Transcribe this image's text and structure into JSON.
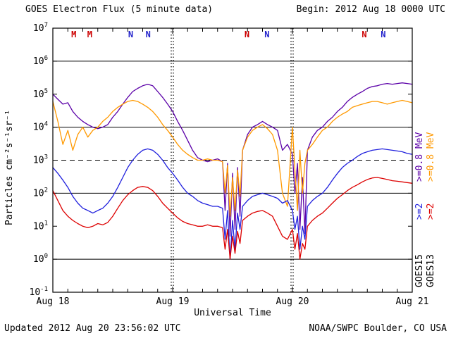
{
  "header": {
    "title": "GOES Electron Flux (5 minute data)",
    "begin": "Begin: 2012 Aug 18 0000 UTC"
  },
  "axes": {
    "ylabel": "Particles cm⁻²s⁻¹sr⁻¹",
    "xlabel": "Universal Time"
  },
  "legend": {
    "items": [
      {
        "label": ">=0.8 MeV",
        "color": "#5b00a8",
        "satellite": "GOES15"
      },
      {
        "label": ">=0.8 MeV",
        "color": "#ff9900",
        "satellite": "GOES13"
      },
      {
        "label": ">=2",
        "color": "#2020dd",
        "satellite": "GOES15"
      },
      {
        "label": ">=2",
        "color": "#dd0000",
        "satellite": "GOES13"
      },
      {
        "label": "GOES15",
        "color": "#000000"
      },
      {
        "label": "GOES13",
        "color": "#000000"
      }
    ]
  },
  "footer": {
    "updated": "Updated 2012 Aug 20 23:56:02 UTC",
    "source": "NOAA/SWPC Boulder, CO USA"
  },
  "chart_data": {
    "type": "line",
    "title": "GOES Electron Flux (5 minute data)",
    "begin": "2012 Aug 18 0000 UTC",
    "xlabel": "Universal Time",
    "ylabel": "Particles cm^-2 s^-1 sr^-1",
    "y_scale": "log10",
    "ylim": [
      0.1,
      10000000
    ],
    "y_tick_exponents": [
      7,
      6,
      5,
      4,
      3,
      2,
      1,
      0,
      -1
    ],
    "solid_grid_exponents": [
      6,
      4,
      2,
      0
    ],
    "threshold": {
      "value": 1000,
      "style": "dashed"
    },
    "x_ticks": [
      {
        "label": "Aug 18",
        "hour": 0
      },
      {
        "label": "Aug 19",
        "hour": 24
      },
      {
        "label": "Aug 20",
        "hour": 48
      },
      {
        "label": "Aug 21",
        "hour": 72
      }
    ],
    "day_boundary_hours": [
      24,
      48
    ],
    "minor_tick_hours_step": 3,
    "hours": [
      0,
      1,
      2,
      3,
      4,
      5,
      6,
      7,
      8,
      9,
      10,
      11,
      12,
      13,
      14,
      15,
      16,
      17,
      18,
      19,
      20,
      21,
      22,
      23,
      24,
      25,
      26,
      27,
      28,
      29,
      30,
      31,
      32,
      33,
      34,
      34.5,
      35,
      35.5,
      36,
      36.5,
      37,
      37.5,
      38,
      39,
      40,
      41,
      42,
      43,
      44,
      45,
      46,
      47,
      48,
      48.5,
      49,
      49.5,
      50,
      50.5,
      51,
      52,
      53,
      54,
      55,
      56,
      57,
      58,
      59,
      60,
      61,
      62,
      63,
      64,
      65,
      66,
      67,
      68,
      69,
      70,
      71,
      72
    ],
    "series": [
      {
        "name": "GOES15 >=0.8 MeV",
        "color": "#5b00a8",
        "values": [
          100000,
          70000,
          50000,
          55000,
          30000,
          20000,
          15000,
          12000,
          10000,
          9000,
          10000,
          12000,
          20000,
          30000,
          50000,
          80000,
          120000,
          150000,
          180000,
          200000,
          180000,
          120000,
          80000,
          50000,
          30000,
          15000,
          8000,
          4000,
          2000,
          1200,
          1000,
          900,
          1000,
          1100,
          900,
          30,
          800,
          5,
          400,
          8,
          600,
          20,
          2000,
          6000,
          10000,
          12000,
          15000,
          12000,
          10000,
          8000,
          2000,
          3000,
          1500,
          100,
          800,
          8,
          300,
          6,
          2000,
          5000,
          8000,
          10000,
          15000,
          20000,
          30000,
          40000,
          60000,
          80000,
          100000,
          120000,
          150000,
          170000,
          180000,
          200000,
          210000,
          200000,
          210000,
          220000,
          210000,
          200000
        ]
      },
      {
        "name": "GOES13 >=0.8 MeV",
        "color": "#ff9900",
        "values": [
          60000,
          15000,
          3000,
          8000,
          2000,
          6000,
          10000,
          5000,
          8000,
          10000,
          15000,
          20000,
          30000,
          40000,
          50000,
          60000,
          65000,
          60000,
          50000,
          40000,
          30000,
          20000,
          12000,
          8000,
          5000,
          3000,
          2000,
          1500,
          1200,
          1000,
          1000,
          1100,
          1000,
          1000,
          900,
          100,
          700,
          20,
          300,
          30,
          500,
          80,
          2000,
          5000,
          8000,
          10000,
          12000,
          9000,
          6000,
          2000,
          100,
          40,
          10000,
          500,
          30,
          2000,
          100,
          800,
          2000,
          3000,
          5000,
          8000,
          10000,
          15000,
          20000,
          25000,
          30000,
          40000,
          45000,
          50000,
          55000,
          60000,
          60000,
          55000,
          50000,
          55000,
          60000,
          65000,
          60000,
          55000
        ]
      },
      {
        "name": "GOES15 >=2 MeV",
        "color": "#2020dd",
        "values": [
          600,
          400,
          250,
          150,
          80,
          50,
          35,
          30,
          25,
          30,
          35,
          50,
          80,
          150,
          300,
          600,
          1000,
          1500,
          2000,
          2200,
          2000,
          1500,
          1000,
          600,
          400,
          250,
          150,
          100,
          80,
          60,
          50,
          45,
          40,
          40,
          35,
          4,
          30,
          1,
          15,
          2,
          25,
          8,
          40,
          60,
          80,
          90,
          100,
          90,
          80,
          70,
          50,
          60,
          30,
          8,
          20,
          2,
          10,
          4,
          40,
          60,
          80,
          100,
          150,
          250,
          400,
          600,
          800,
          1000,
          1300,
          1600,
          1800,
          2000,
          2100,
          2200,
          2100,
          2000,
          1900,
          1800,
          1600,
          1500
        ]
      },
      {
        "name": "GOES13 >=2 MeV",
        "color": "#dd0000",
        "values": [
          120,
          60,
          30,
          20,
          15,
          12,
          10,
          9,
          10,
          12,
          11,
          13,
          20,
          35,
          60,
          90,
          120,
          150,
          160,
          150,
          120,
          80,
          50,
          35,
          25,
          18,
          14,
          12,
          11,
          10,
          10,
          11,
          10,
          10,
          9,
          2,
          8,
          1,
          5,
          1.5,
          7,
          3,
          15,
          20,
          25,
          28,
          30,
          25,
          20,
          10,
          5,
          4,
          8,
          2,
          6,
          1,
          3,
          2,
          10,
          15,
          20,
          25,
          35,
          50,
          70,
          90,
          120,
          150,
          180,
          220,
          260,
          290,
          300,
          280,
          260,
          240,
          230,
          220,
          210,
          200
        ]
      }
    ],
    "event_markers": [
      {
        "label": "M",
        "color": "#cc0000",
        "hour": 4.2
      },
      {
        "label": "M",
        "color": "#cc0000",
        "hour": 7.4
      },
      {
        "label": "N",
        "color": "#2222cc",
        "hour": 15.6
      },
      {
        "label": "N",
        "color": "#2222cc",
        "hour": 19.1
      },
      {
        "label": "N",
        "color": "#cc0000",
        "hour": 38.9
      },
      {
        "label": "N",
        "color": "#2222cc",
        "hour": 42.9
      },
      {
        "label": "N",
        "color": "#cc0000",
        "hour": 62.4
      },
      {
        "label": "N",
        "color": "#2222cc",
        "hour": 66.2
      }
    ]
  }
}
